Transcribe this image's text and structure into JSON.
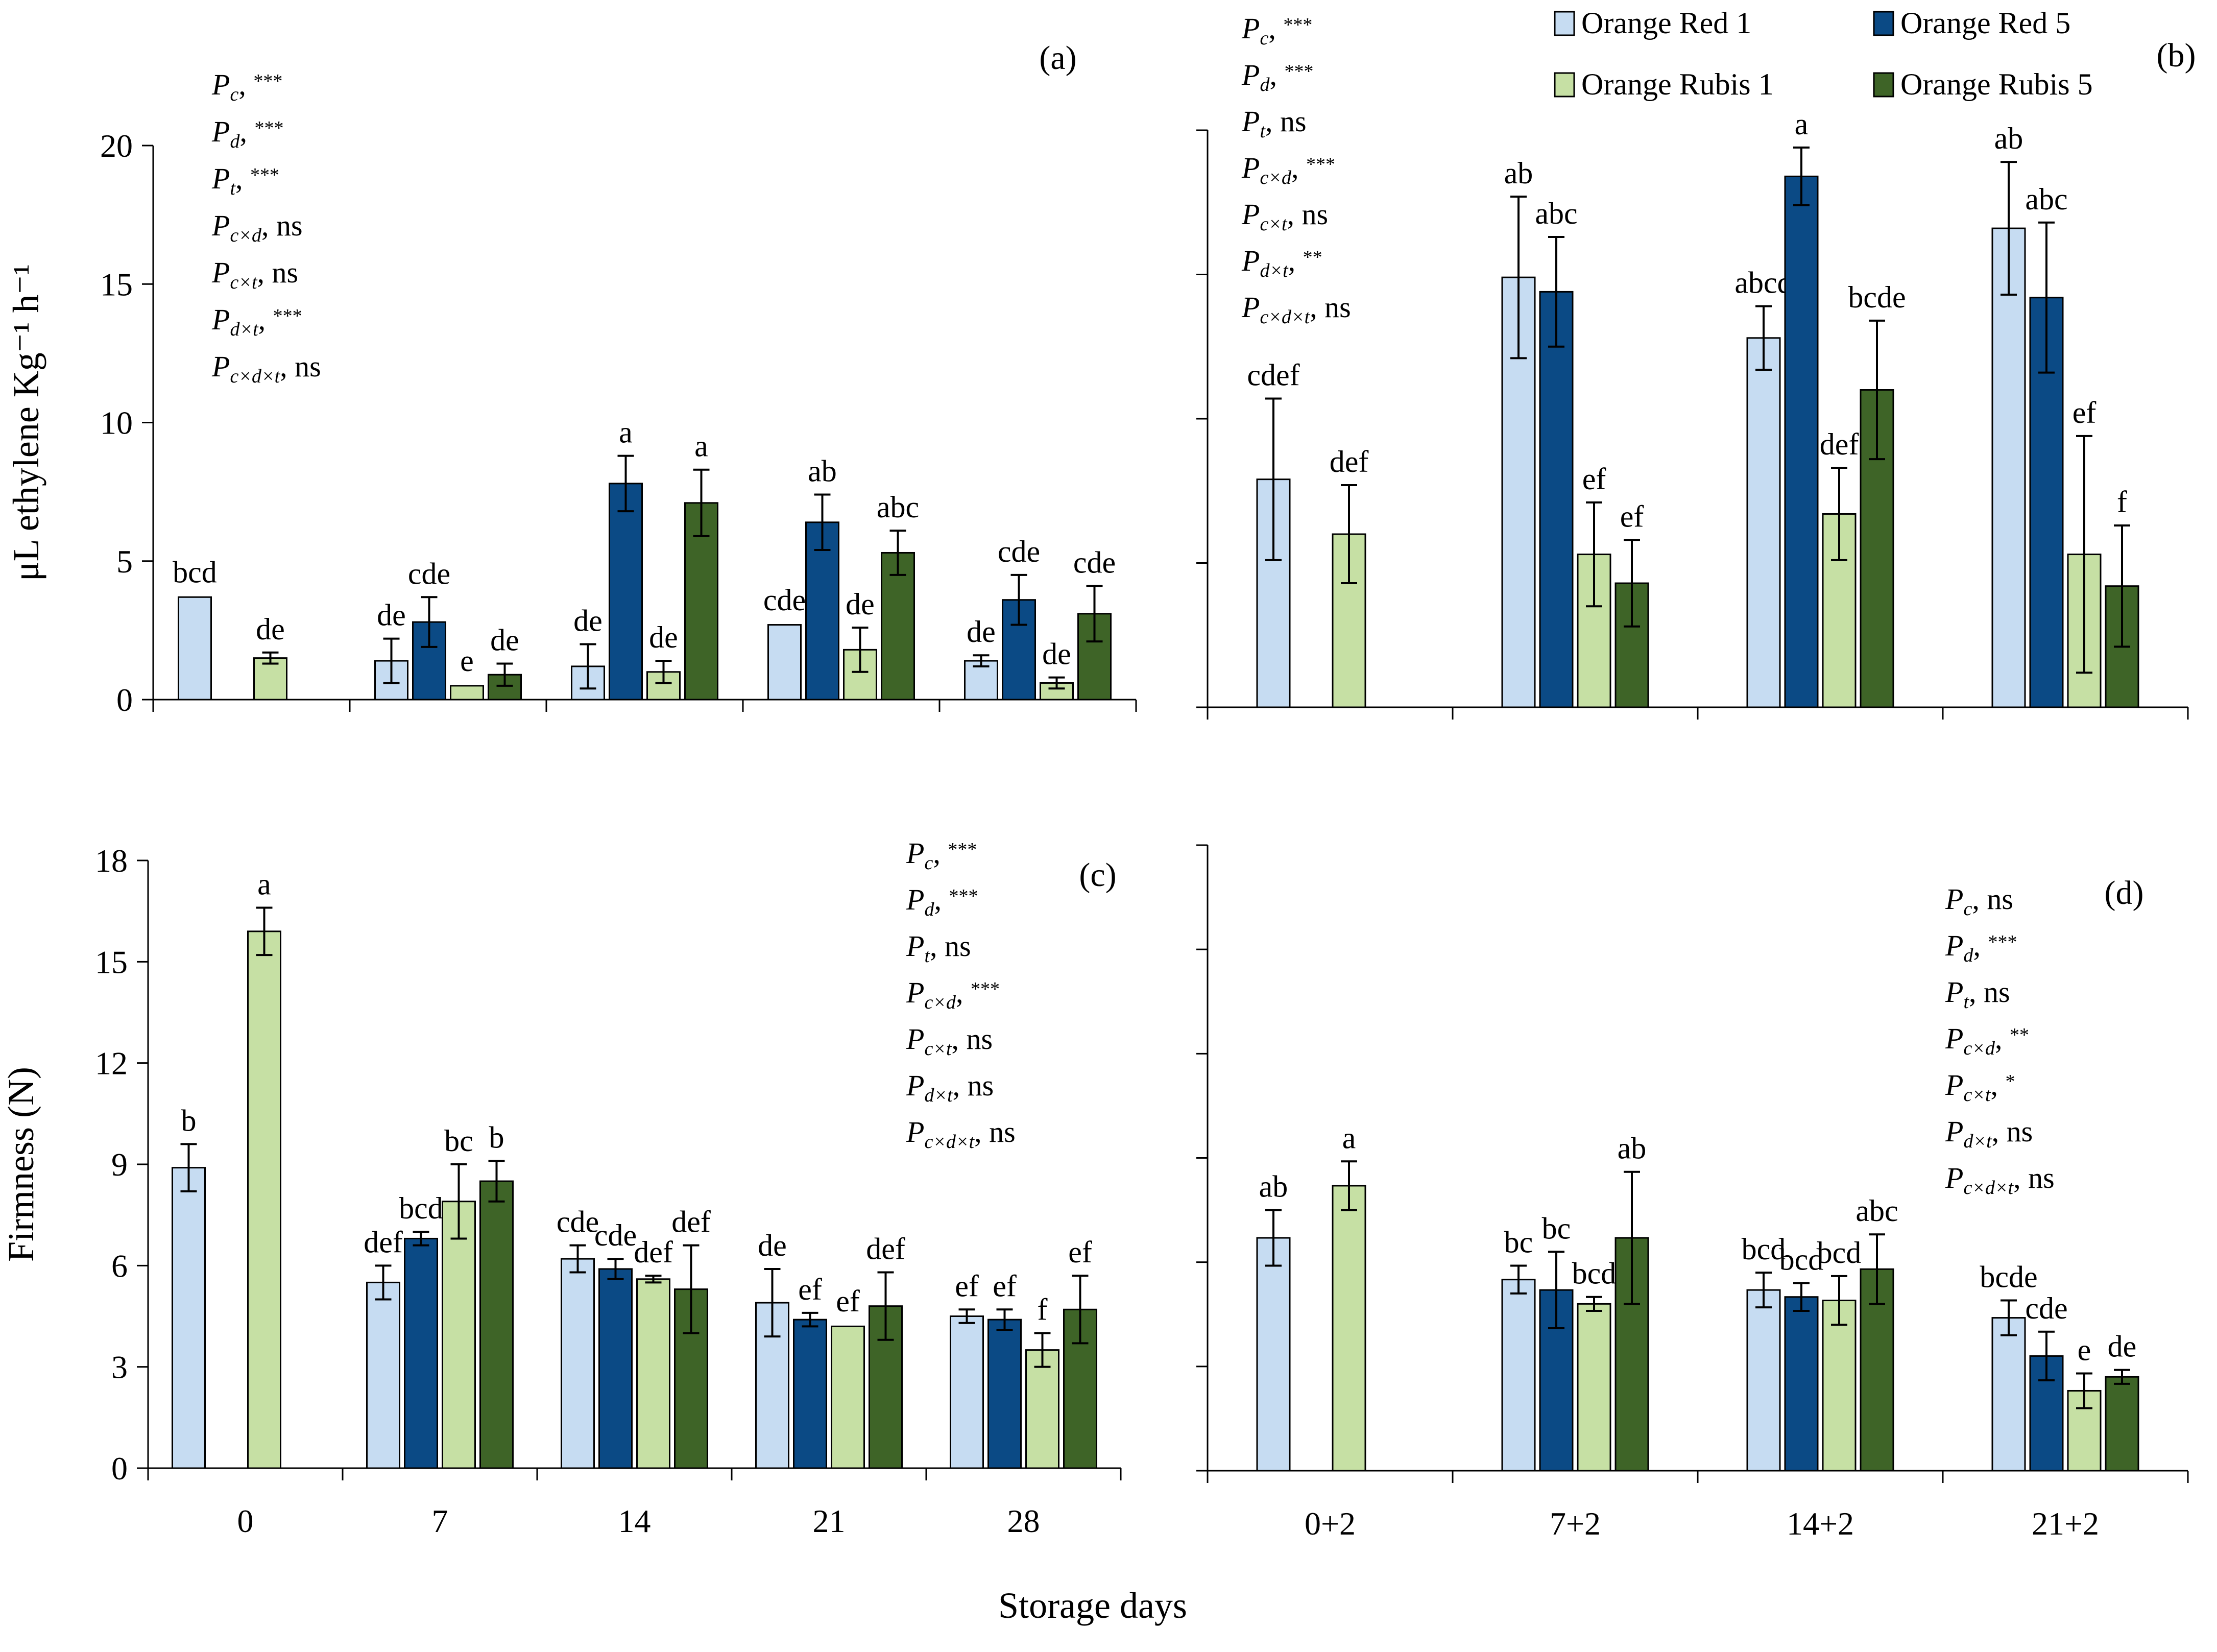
{
  "colors": {
    "Orange Red 1": "#c6dcf2",
    "Orange Red 5": "#0b4a85",
    "Orange Rubis 1": "#c6e0a4",
    "Orange Rubis 5": "#3e6427"
  },
  "legend": [
    "Orange Red 1",
    "Orange Red 5",
    "Orange Rubis 1",
    "Orange Rubis 5"
  ],
  "x_title": "Storage days",
  "chart_data": [
    {
      "panel": "a",
      "panel_label": "(a)",
      "type": "bar",
      "ylabel": "μL ethylene Kg⁻¹ h⁻¹",
      "ylim": [
        0,
        20
      ],
      "yticks": [
        "0",
        "5",
        "10",
        "15",
        "20"
      ],
      "categories": [
        "0",
        "7",
        "14",
        "21",
        "28"
      ],
      "series": [
        {
          "name": "Orange Red 1",
          "values": [
            3.7,
            1.4,
            1.2,
            2.7,
            1.4
          ],
          "errors": [
            0.05,
            0.8,
            0.8,
            0.05,
            0.2
          ],
          "letters": [
            "bcd",
            "de",
            "de",
            "cde",
            "de"
          ]
        },
        {
          "name": "Orange Red 5",
          "values": [
            null,
            2.8,
            7.8,
            6.4,
            3.6
          ],
          "errors": [
            null,
            0.9,
            1.0,
            1.0,
            0.9
          ],
          "letters": [
            "",
            "cde",
            "a",
            "ab",
            "cde"
          ]
        },
        {
          "name": "Orange Rubis 1",
          "values": [
            1.5,
            0.5,
            1.0,
            1.8,
            0.6
          ],
          "errors": [
            0.2,
            0.05,
            0.4,
            0.8,
            0.2
          ],
          "letters": [
            "de",
            "e",
            "de",
            "de",
            "de"
          ]
        },
        {
          "name": "Orange Rubis 5",
          "values": [
            null,
            0.9,
            7.1,
            5.3,
            3.1
          ],
          "errors": [
            null,
            0.4,
            1.2,
            0.8,
            1.0
          ],
          "letters": [
            "",
            "de",
            "a",
            "abc",
            "cde"
          ]
        }
      ],
      "stats": [
        {
          "sub": "c",
          "sig": "***"
        },
        {
          "sub": "d",
          "sig": "***"
        },
        {
          "sub": "t",
          "sig": "***"
        },
        {
          "sub": "c×d",
          "sig": "ns"
        },
        {
          "sub": "c×t",
          "sig": "ns"
        },
        {
          "sub": "d×t",
          "sig": "***"
        },
        {
          "sub": "c×d×t",
          "sig": "ns"
        }
      ]
    },
    {
      "panel": "b",
      "panel_label": "(b)",
      "type": "bar",
      "ylabel": "",
      "ylim": [
        0,
        20
      ],
      "yticks": [],
      "categories": [
        "0+2",
        "7+2",
        "14+2",
        "21+2"
      ],
      "series": [
        {
          "name": "Orange Red 1",
          "values": [
            7.9,
            14.9,
            12.8,
            16.6
          ],
          "errors": [
            2.8,
            2.8,
            1.1,
            2.3
          ],
          "letters": [
            "cdef",
            "ab",
            "abcd",
            "ab"
          ]
        },
        {
          "name": "Orange Red 5",
          "values": [
            null,
            14.4,
            18.4,
            14.2
          ],
          "errors": [
            null,
            1.9,
            1.0,
            2.6
          ],
          "letters": [
            "",
            "abc",
            "a",
            "abc"
          ]
        },
        {
          "name": "Orange Rubis 1",
          "values": [
            6.0,
            5.3,
            6.7,
            5.3
          ],
          "errors": [
            1.7,
            1.8,
            1.6,
            4.1
          ],
          "letters": [
            "def",
            "ef",
            "def",
            "ef"
          ]
        },
        {
          "name": "Orange Rubis 5",
          "values": [
            null,
            4.3,
            11.0,
            4.2
          ],
          "errors": [
            null,
            1.5,
            2.4,
            2.1
          ],
          "letters": [
            "",
            "ef",
            "bcde",
            "f"
          ]
        }
      ],
      "stats": [
        {
          "sub": "c",
          "sig": "***"
        },
        {
          "sub": "d",
          "sig": "***"
        },
        {
          "sub": "t",
          "sig": "ns"
        },
        {
          "sub": "c×d",
          "sig": "***"
        },
        {
          "sub": "c×t",
          "sig": "ns"
        },
        {
          "sub": "d×t",
          "sig": "**"
        },
        {
          "sub": "c×d×t",
          "sig": "ns"
        }
      ]
    },
    {
      "panel": "c",
      "panel_label": "(c)",
      "type": "bar",
      "ylabel": "Firmness (N)",
      "ylim": [
        0,
        18
      ],
      "yticks": [
        "0",
        "3",
        "6",
        "9",
        "12",
        "15",
        "18"
      ],
      "categories": [
        "0",
        "7",
        "14",
        "21",
        "28"
      ],
      "series": [
        {
          "name": "Orange Red 1",
          "values": [
            8.9,
            5.5,
            6.2,
            4.9,
            4.5
          ],
          "errors": [
            0.7,
            0.5,
            0.4,
            1.0,
            0.2
          ],
          "letters": [
            "b",
            "def",
            "cde",
            "de",
            "ef"
          ]
        },
        {
          "name": "Orange Red 5",
          "values": [
            null,
            6.8,
            5.9,
            4.4,
            4.4
          ],
          "errors": [
            null,
            0.2,
            0.3,
            0.2,
            0.3
          ],
          "letters": [
            "",
            "bcd",
            "cde",
            "ef",
            "ef"
          ]
        },
        {
          "name": "Orange Rubis 1",
          "values": [
            15.9,
            7.9,
            5.6,
            4.2,
            3.5
          ],
          "errors": [
            0.7,
            1.1,
            0.1,
            0.05,
            0.5
          ],
          "letters": [
            "a",
            "bc",
            "def",
            "ef",
            "f"
          ]
        },
        {
          "name": "Orange Rubis 5",
          "values": [
            null,
            8.5,
            5.3,
            4.8,
            4.7
          ],
          "errors": [
            null,
            0.6,
            1.3,
            1.0,
            1.0
          ],
          "letters": [
            "",
            "b",
            "def",
            "def",
            "ef"
          ]
        }
      ],
      "stats": [
        {
          "sub": "c",
          "sig": "***"
        },
        {
          "sub": "d",
          "sig": "***"
        },
        {
          "sub": "t",
          "sig": "ns"
        },
        {
          "sub": "c×d",
          "sig": "***"
        },
        {
          "sub": "c×t",
          "sig": "ns"
        },
        {
          "sub": "d×t",
          "sig": "ns"
        },
        {
          "sub": "c×d×t",
          "sig": "ns"
        }
      ]
    },
    {
      "panel": "d",
      "panel_label": "(d)",
      "type": "bar",
      "ylabel": "",
      "ylim": [
        0,
        18
      ],
      "yticks": [],
      "categories": [
        "0+2",
        "7+2",
        "14+2",
        "21+2"
      ],
      "series": [
        {
          "name": "Orange Red 1",
          "values": [
            6.7,
            5.5,
            5.2,
            4.4
          ],
          "errors": [
            0.8,
            0.4,
            0.5,
            0.5
          ],
          "letters": [
            "ab",
            "bc",
            "bcd",
            "bcde"
          ]
        },
        {
          "name": "Orange Red 5",
          "values": [
            null,
            5.2,
            5.0,
            3.3
          ],
          "errors": [
            null,
            1.1,
            0.4,
            0.7
          ],
          "letters": [
            "",
            "bc",
            "bcd",
            "cde"
          ]
        },
        {
          "name": "Orange Rubis 1",
          "values": [
            8.2,
            4.8,
            4.9,
            2.3
          ],
          "errors": [
            0.7,
            0.2,
            0.7,
            0.5
          ],
          "letters": [
            "a",
            "bcd",
            "bcd",
            "e"
          ]
        },
        {
          "name": "Orange Rubis 5",
          "values": [
            null,
            6.7,
            5.8,
            2.7
          ],
          "errors": [
            null,
            1.9,
            1.0,
            0.2
          ],
          "letters": [
            "",
            "ab",
            "abc",
            "de"
          ]
        }
      ],
      "stats": [
        {
          "sub": "c",
          "sig": "ns"
        },
        {
          "sub": "d",
          "sig": "***"
        },
        {
          "sub": "t",
          "sig": "ns"
        },
        {
          "sub": "c×d",
          "sig": "**"
        },
        {
          "sub": "c×t",
          "sig": "*"
        },
        {
          "sub": "d×t",
          "sig": "ns"
        },
        {
          "sub": "c×d×t",
          "sig": "ns"
        }
      ]
    }
  ]
}
